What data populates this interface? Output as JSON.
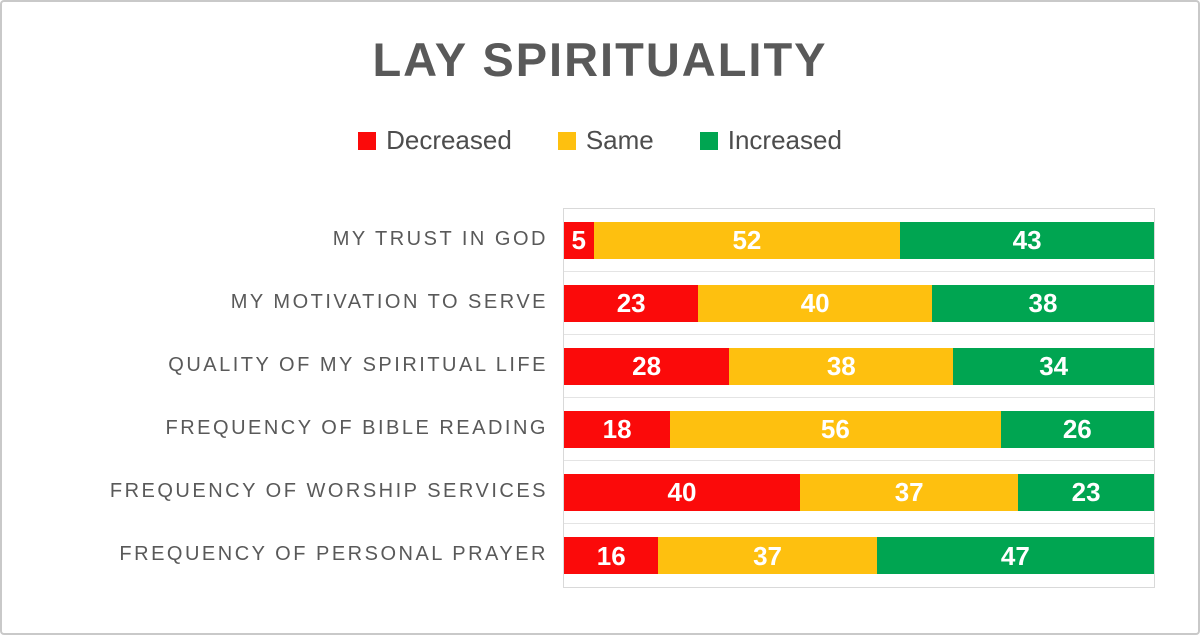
{
  "title": "LAY SPIRITUALITY",
  "colors": {
    "decreased": "#fb0a0a",
    "same": "#fec00f",
    "increased": "#00a551",
    "title_text": "#595959",
    "category_text": "#595959",
    "legend_text": "#4d4d4d",
    "plot_border": "#d9d9d9",
    "frame_border": "#c9c9c9",
    "data_label_text": "#ffffff"
  },
  "chart_data": {
    "type": "bar",
    "orientation": "horizontal",
    "stacked": true,
    "title": "LAY SPIRITUALITY",
    "xlabel": "",
    "ylabel": "",
    "xlim": [
      0,
      100
    ],
    "legend_position": "top",
    "data_labels": "inside center, white",
    "grid": "category separators only",
    "categories": [
      "MY TRUST IN GOD",
      "MY MOTIVATION TO SERVE",
      "QUALITY OF MY SPIRITUAL LIFE",
      "FREQUENCY OF BIBLE READING",
      "FREQUENCY OF WORSHIP SERVICES",
      "FREQUENCY OF PERSONAL PRAYER"
    ],
    "series": [
      {
        "name": "Decreased",
        "color": "#fb0a0a",
        "values": [
          5,
          23,
          28,
          18,
          40,
          16
        ]
      },
      {
        "name": "Same",
        "color": "#fec00f",
        "values": [
          52,
          40,
          38,
          56,
          37,
          37
        ]
      },
      {
        "name": "Increased",
        "color": "#00a551",
        "values": [
          43,
          38,
          34,
          26,
          23,
          47
        ]
      }
    ]
  }
}
